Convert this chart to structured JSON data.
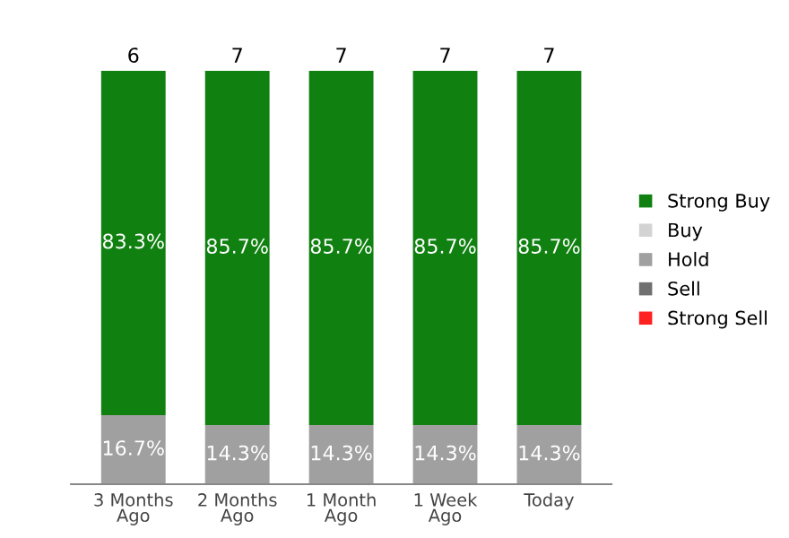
{
  "chart_data": {
    "type": "bar",
    "stacked": true,
    "categories": [
      "3 Months\nAgo",
      "2 Months\nAgo",
      "1 Month\nAgo",
      "1 Week\nAgo",
      "Today"
    ],
    "series": [
      {
        "name": "Strong Sell",
        "color": "#ff2020",
        "values": [
          null,
          null,
          null,
          null,
          null
        ]
      },
      {
        "name": "Sell",
        "color": "#707070",
        "values": [
          null,
          null,
          null,
          null,
          null
        ]
      },
      {
        "name": "Hold",
        "color": "#a0a0a0",
        "values": [
          16.7,
          14.3,
          14.3,
          14.3,
          14.3
        ],
        "value_labels": [
          "16.7%",
          "14.3%",
          "14.3%",
          "14.3%",
          "14.3%"
        ]
      },
      {
        "name": "Buy",
        "color": "#d3d3d3",
        "values": [
          null,
          null,
          null,
          null,
          null
        ]
      },
      {
        "name": "Strong Buy",
        "color": "#108010",
        "values": [
          83.3,
          85.7,
          85.7,
          85.7,
          85.7
        ],
        "value_labels": [
          "83.3%",
          "85.7%",
          "85.7%",
          "85.7%",
          "85.7%"
        ]
      }
    ],
    "annotations": [
      {
        "text": "6",
        "x": "3 Months\nAgo",
        "y": 100
      },
      {
        "text": "7",
        "x": "2 Months\nAgo",
        "y": 100
      },
      {
        "text": "7",
        "x": "1 Month\nAgo",
        "y": 100
      },
      {
        "text": "7",
        "x": "1 Week\nAgo",
        "y": 100
      },
      {
        "text": "7",
        "x": "Today",
        "y": 100
      }
    ],
    "legend": "right",
    "grid": false
  }
}
